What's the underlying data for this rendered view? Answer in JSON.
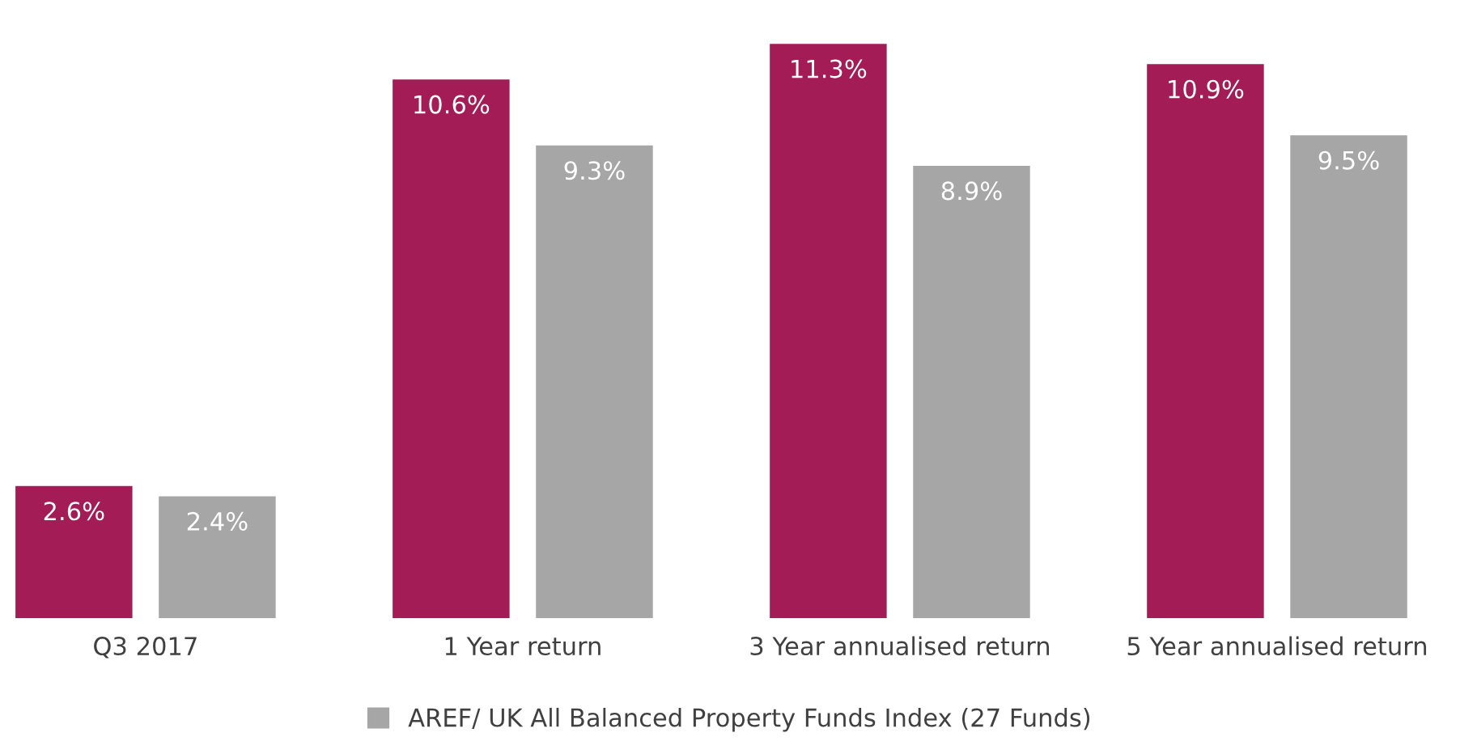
{
  "chart_data": {
    "type": "bar",
    "categories": [
      "Q3 2017",
      "1 Year return",
      "3 Year annualised return",
      "5 Year annualised return"
    ],
    "series": [
      {
        "color": "#a41c55",
        "values": [
          2.6,
          10.6,
          11.3,
          10.9
        ],
        "value_labels": [
          "2.6%",
          "10.6%",
          "11.3%",
          "10.9%"
        ]
      },
      {
        "name": "AREF/ UK All Balanced Property Funds Index (27 Funds)",
        "color": "#a6a6a6",
        "values": [
          2.4,
          9.3,
          8.9,
          9.5
        ],
        "value_labels": [
          "2.4%",
          "9.3%",
          "8.9%",
          "9.5%"
        ]
      }
    ],
    "legend": "bottom",
    "grid": false
  }
}
